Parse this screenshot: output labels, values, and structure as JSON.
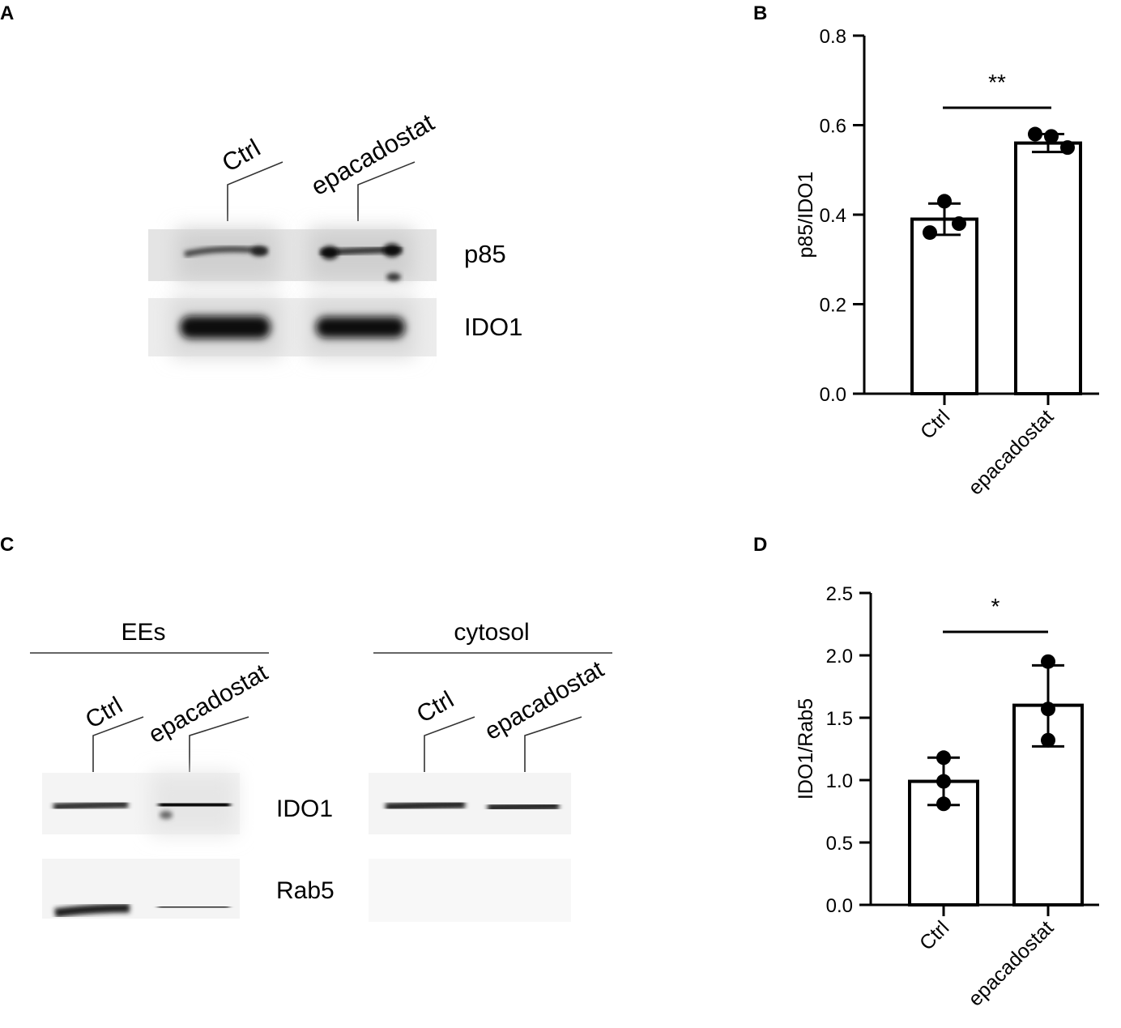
{
  "panels": {
    "a": {
      "letter": "A",
      "lanes": [
        "Ctrl",
        "epacadostat"
      ],
      "rows": [
        "p85",
        "IDO1"
      ]
    },
    "c": {
      "letter": "C",
      "groups": [
        {
          "label": "EEs",
          "lanes": [
            "Ctrl",
            "epacadostat"
          ]
        },
        {
          "label": "cytosol",
          "lanes": [
            "Ctrl",
            "epacadostat"
          ]
        }
      ],
      "rows": [
        "IDO1",
        "Rab5"
      ]
    }
  },
  "chart_data": [
    {
      "panel": "B",
      "type": "bar",
      "categories": [
        "Ctrl",
        "epacadostat"
      ],
      "values": [
        0.39,
        0.56
      ],
      "error": [
        [
          0.355,
          0.425
        ],
        [
          0.54,
          0.58
        ]
      ],
      "points": [
        [
          0.43,
          0.36,
          0.38
        ],
        [
          0.58,
          0.575,
          0.55
        ]
      ],
      "ylabel": "p85/IDO1",
      "xlabel": "",
      "ylim": [
        0.0,
        0.8
      ],
      "yticks": [
        "0.0",
        "0.2",
        "0.4",
        "0.6",
        "0.8"
      ],
      "significance": "**"
    },
    {
      "panel": "D",
      "type": "bar",
      "categories": [
        "Ctrl",
        "epacadostat"
      ],
      "values": [
        0.99,
        1.6
      ],
      "error": [
        [
          0.8,
          1.18
        ],
        [
          1.27,
          1.92
        ]
      ],
      "points": [
        [
          1.18,
          0.99,
          0.81
        ],
        [
          1.95,
          1.57,
          1.32
        ]
      ],
      "ylabel": "IDO1/Rab5",
      "xlabel": "",
      "ylim": [
        0.0,
        2.5
      ],
      "yticks": [
        "0.0",
        "0.5",
        "1.0",
        "1.5",
        "2.0",
        "2.5"
      ],
      "significance": "*"
    }
  ]
}
